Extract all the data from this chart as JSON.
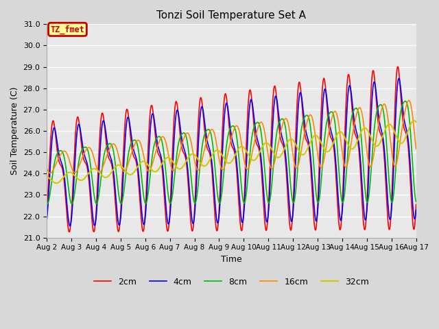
{
  "title": "Tonzi Soil Temperature Set A",
  "xlabel": "Time",
  "ylabel": "Soil Temperature (C)",
  "ylim": [
    21.0,
    31.0
  ],
  "yticks": [
    21.0,
    22.0,
    23.0,
    24.0,
    25.0,
    26.0,
    27.0,
    28.0,
    29.0,
    30.0,
    31.0
  ],
  "label_box_text": "TZ_fmet",
  "label_box_color": "#ffff99",
  "label_box_border": "#cc0000",
  "label_text_color": "#cc0000",
  "lines": [
    {
      "label": "2cm",
      "color": "#ff0000",
      "lw": 1.2
    },
    {
      "label": "4cm",
      "color": "#0000ff",
      "lw": 1.2
    },
    {
      "label": "8cm",
      "color": "#00bb00",
      "lw": 1.2
    },
    {
      "label": "16cm",
      "color": "#ff8800",
      "lw": 1.2
    },
    {
      "label": "32cm",
      "color": "#cccc00",
      "lw": 1.5
    }
  ],
  "xtick_labels": [
    "Aug 2",
    "Aug 3",
    "Aug 4",
    "Aug 5",
    "Aug 6",
    "Aug 7",
    "Aug 8",
    "Aug 9",
    "Aug 10",
    "Aug 11",
    "Aug 12",
    "Aug 13",
    "Aug 14",
    "Aug 15",
    "Aug 16",
    "Aug 17"
  ],
  "n_days": 15,
  "pts_per_day": 96,
  "fig_bg": "#d8d8d8",
  "plot_bg": "#e8e8e8"
}
